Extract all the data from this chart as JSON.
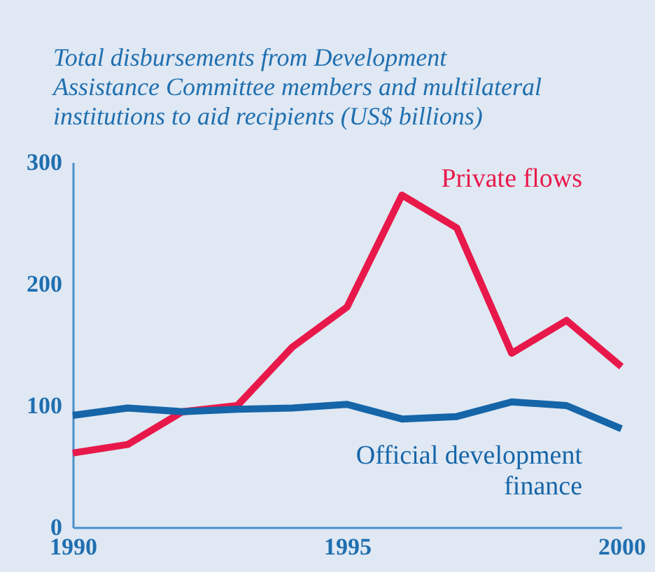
{
  "chart_data": {
    "type": "line",
    "title": "Total disbursements from Development Assistance Committee members and multilateral institutions to aid recipients (US$ billions)",
    "x": [
      1990,
      1991,
      1992,
      1993,
      1994,
      1995,
      1996,
      1997,
      1998,
      1999,
      2000
    ],
    "series": [
      {
        "name": "Private flows",
        "color": "#e8194a",
        "values": [
          61,
          68,
          95,
          100,
          148,
          181,
          273,
          246,
          143,
          170,
          132
        ]
      },
      {
        "name": "Official development finance",
        "color": "#1565a8",
        "values": [
          92,
          98,
          95,
          97,
          98,
          101,
          89,
          91,
          103,
          100,
          81
        ]
      }
    ],
    "xlim": [
      1990,
      2000
    ],
    "xticks": [
      1990,
      1995,
      2000
    ],
    "ylim": [
      0,
      300
    ],
    "yticks": [
      0,
      100,
      200,
      300
    ],
    "grid": false,
    "legend": false,
    "marker": "none",
    "line_style": "solid"
  }
}
